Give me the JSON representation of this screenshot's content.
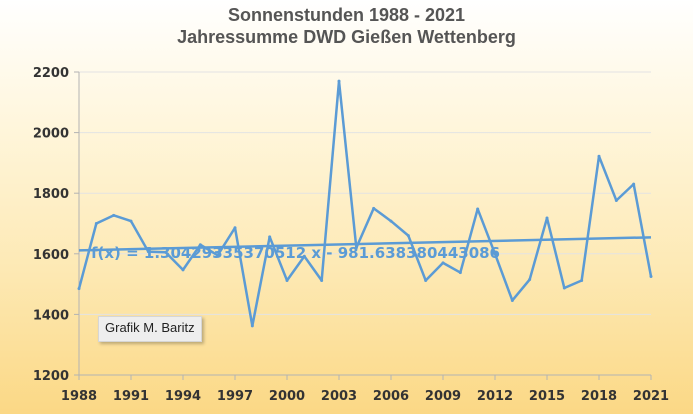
{
  "chart_data": {
    "type": "line",
    "title": "Sonnenstunden 1988 - 2021",
    "subtitle": "Jahressumme DWD Gießen Wettenberg",
    "xlabel": "",
    "ylabel": "",
    "xlim": [
      1988,
      2021
    ],
    "ylim": [
      1200,
      2200
    ],
    "x_ticks": [
      "1988",
      "1991",
      "1994",
      "1997",
      "2000",
      "2003",
      "2006",
      "2009",
      "2012",
      "2015",
      "2018",
      "2021"
    ],
    "y_ticks": [
      "1200",
      "1400",
      "1600",
      "1800",
      "2000",
      "2200"
    ],
    "grid": "horizontal",
    "series": [
      {
        "color": "#5b9bd5",
        "x": [
          1988,
          1989,
          1990,
          1991,
          1992,
          1993,
          1994,
          1995,
          1996,
          1997,
          1998,
          1999,
          2000,
          2001,
          2002,
          2003,
          2004,
          2005,
          2006,
          2007,
          2008,
          2009,
          2010,
          2011,
          2012,
          2013,
          2014,
          2015,
          2016,
          2017,
          2018,
          2019,
          2020,
          2021
        ],
        "values": [
          1485,
          1700,
          1727,
          1708,
          1607,
          1605,
          1547,
          1630,
          1595,
          1686,
          1362,
          1656,
          1512,
          1592,
          1512,
          2170,
          1620,
          1750,
          1708,
          1660,
          1512,
          1570,
          1538,
          1748,
          1600,
          1446,
          1515,
          1718,
          1487,
          1512,
          1922,
          1776,
          1830,
          1525
        ]
      }
    ],
    "trendline": {
      "label": "f(x) = 1.30429335370512 x - 981.638380443086",
      "slope": 1.30429335370512,
      "intercept": -981.638380443086,
      "color": "#5b9bd5"
    },
    "annotation": "Grafik M. Baritz"
  }
}
